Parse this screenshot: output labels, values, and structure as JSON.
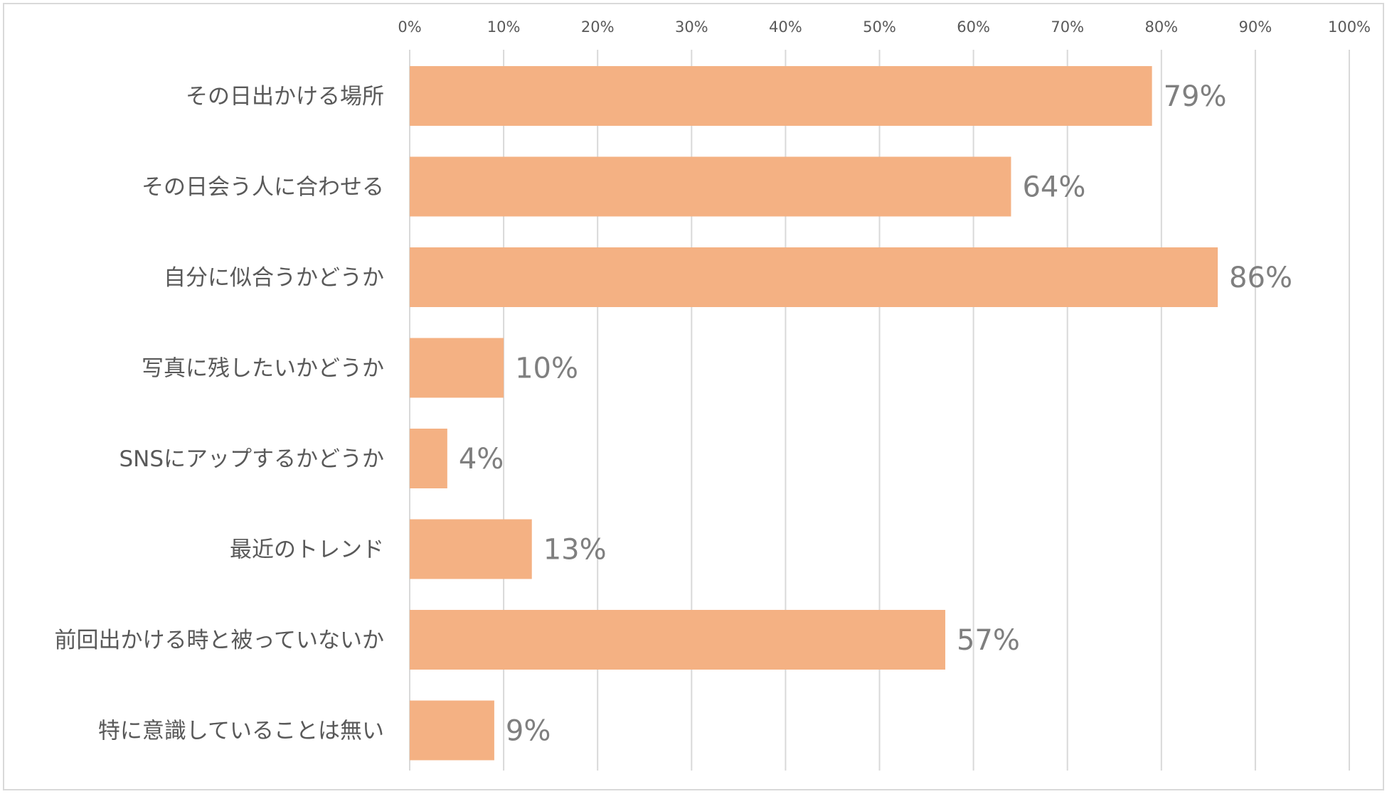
{
  "chart_data": {
    "type": "bar",
    "orientation": "horizontal",
    "categories": [
      "その日出かける場所",
      "その日会う人に合わせる",
      "自分に似合うかどうか",
      "写真に残したいかどうか",
      "SNSにアップするかどうか",
      "最近のトレンド",
      "前回出かける時と被っていないか",
      "特に意識していることは無い"
    ],
    "values": [
      79,
      64,
      86,
      10,
      4,
      13,
      57,
      9
    ],
    "value_labels": [
      "79%",
      "64%",
      "86%",
      "10%",
      "4%",
      "13%",
      "57%",
      "9%"
    ],
    "x_ticks": [
      "0%",
      "10%",
      "20%",
      "30%",
      "40%",
      "50%",
      "60%",
      "70%",
      "80%",
      "90%",
      "100%"
    ],
    "xlim": [
      0,
      100
    ],
    "x_axis_position": "top",
    "grid": true,
    "legend": "none",
    "colors": {
      "bar": "#f4b183",
      "grid": "#d9d9d9",
      "label_text": "#595959",
      "value_text": "#7f7f7f"
    }
  }
}
